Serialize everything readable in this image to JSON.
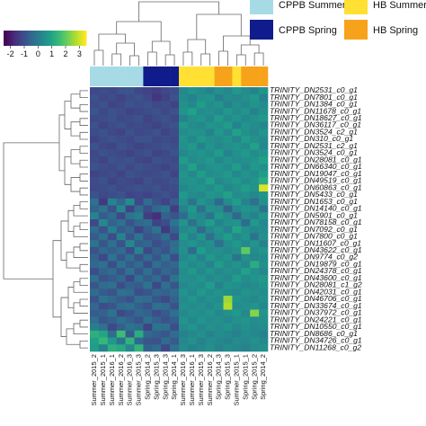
{
  "chart_data": {
    "type": "heatmap",
    "columns": [
      "Summer_2015_2",
      "Summer_2015_1",
      "Summer_2016_1",
      "Summer_2016_2",
      "Summer_2016_3",
      "Summer_2015_3",
      "Spring_2014_2",
      "Spring_2015_3",
      "Spring_2014_3",
      "Spring_2014_1",
      "Summer_2016_3",
      "Summer_2016_1",
      "Summer_2015_3",
      "Summer_2016_2",
      "Spring_2014_3",
      "Spring_2015_3",
      "Summer_2015_1",
      "Spring_2015_1",
      "Spring_2015_2",
      "Spring_2014_2"
    ],
    "column_groups": [
      "CPPB Summer",
      "CPPB Summer",
      "CPPB Summer",
      "CPPB Summer",
      "CPPB Summer",
      "CPPB Summer",
      "CPPB Spring",
      "CPPB Spring",
      "CPPB Spring",
      "CPPB Spring",
      "HB Summer",
      "HB Summer",
      "HB Summer",
      "HB Summer",
      "HB Spring",
      "HB Spring",
      "HB Summer",
      "HB Spring",
      "HB Spring",
      "HB Spring"
    ],
    "rows": [
      "TRINITY_DN2531_c0_g1",
      "TRINITY_DN7801_c0_g1",
      "TRINITY_DN1384_c0_g1",
      "TRINITY_DN11678_c0_g1",
      "TRINITY_DN18627_c0_g1",
      "TRINITY_DN36117_c0_g1",
      "TRINITY_DN3524_c2_g1",
      "TRINITY_DN310_c0_g1",
      "TRINITY_DN2531_c2_g1",
      "TRINITY_DN3524_c0_g1",
      "TRINITY_DN28081_c0_g1",
      "TRINITY_DN66340_c0_g1",
      "TRINITY_DN19047_c0_g1",
      "TRINITY_DN49519_c0_g1",
      "TRINITY_DN60863_c0_g1",
      "TRINITY_DN5433_c0_g1",
      "TRINITY_DN1653_c0_g1",
      "TRINITY_DN14140_c0_g1",
      "TRINITY_DN5901_c0_g1",
      "TRINITY_DN78158_c0_g1",
      "TRINITY_DN7092_c0_g1",
      "TRINITY_DN7800_c0_g1",
      "TRINITY_DN11607_c0_g1",
      "TRINITY_DN43622_c0_g1",
      "TRINITY_DN9774_c0_g2",
      "TRINITY_DN19879_c0_g1",
      "TRINITY_DN24378_c0_g1",
      "TRINITY_DN43600_c0_g1",
      "TRINITY_DN28081_c1_g2",
      "TRINITY_DN42031_c0_g1",
      "TRINITY_DN46706_c0_g1",
      "TRINITY_DN33674_c0_g1",
      "TRINITY_DN37972_c0_g1",
      "TRINITY_DN24221_c0_g1",
      "TRINITY_DN10550_c0_g1",
      "TRINITY_DN8686_c0_g1",
      "TRINITY_DN34726_c0_g1",
      "TRINITY_DN11268_c0_g2"
    ],
    "values": [
      [
        -1.2,
        -1.1,
        -1.2,
        -1.0,
        -0.9,
        -1.2,
        -1.3,
        -1.4,
        -1.2,
        -1.1,
        0.3,
        0.6,
        0.4,
        0.2,
        0.5,
        0.3,
        0.7,
        0.4,
        0.2,
        0.6
      ],
      [
        -1.0,
        -1.2,
        -1.1,
        -1.3,
        -1.1,
        -1.0,
        -1.2,
        -1.6,
        -1.3,
        -1.0,
        0.4,
        0.2,
        0.5,
        0.6,
        0.1,
        0.4,
        0.3,
        0.5,
        0.7,
        0.2
      ],
      [
        -1.1,
        -1.0,
        -1.3,
        -1.2,
        -1.0,
        -1.1,
        -1.0,
        -1.2,
        -1.1,
        -1.3,
        0.5,
        0.3,
        0.8,
        0.4,
        0.6,
        0.2,
        0.5,
        0.3,
        0.6,
        0.4
      ],
      [
        -0.9,
        -1.2,
        -1.0,
        -1.1,
        -1.3,
        -1.2,
        -1.1,
        -1.0,
        -1.2,
        -1.0,
        0.6,
        0.9,
        0.4,
        0.5,
        0.3,
        0.7,
        0.4,
        0.6,
        0.2,
        0.5
      ],
      [
        -1.2,
        -1.1,
        -1.0,
        -1.2,
        -1.1,
        -1.0,
        -1.3,
        -1.1,
        -1.0,
        -1.2,
        0.2,
        0.5,
        0.6,
        0.3,
        0.8,
        0.4,
        0.6,
        0.3,
        0.5,
        0.7
      ],
      [
        -1.0,
        -1.3,
        -1.1,
        -1.0,
        -1.2,
        -1.1,
        -1.2,
        -1.3,
        -1.1,
        -1.0,
        0.7,
        0.4,
        0.3,
        0.6,
        0.5,
        0.8,
        0.2,
        0.6,
        0.4,
        0.3
      ],
      [
        -1.1,
        -1.0,
        -1.2,
        -1.3,
        -1.0,
        -1.2,
        -1.1,
        -1.0,
        -1.3,
        -1.1,
        0.4,
        0.6,
        0.5,
        0.2,
        0.7,
        0.3,
        0.9,
        0.5,
        0.3,
        0.6
      ],
      [
        -1.3,
        -1.1,
        -1.0,
        -1.1,
        -1.2,
        -1.0,
        -1.0,
        -1.2,
        -1.1,
        -1.2,
        0.6,
        0.3,
        0.7,
        0.5,
        0.4,
        0.6,
        0.3,
        0.8,
        0.5,
        0.4
      ],
      [
        -1.0,
        -1.2,
        -1.3,
        -1.0,
        -1.1,
        -1.3,
        -1.2,
        -1.1,
        -1.0,
        -1.1,
        0.5,
        0.7,
        0.2,
        0.6,
        0.3,
        0.5,
        0.6,
        0.4,
        0.9,
        0.3
      ],
      [
        -1.2,
        -1.0,
        -1.1,
        -1.2,
        -1.3,
        -1.1,
        -1.0,
        -1.3,
        -1.2,
        -1.0,
        0.3,
        0.5,
        0.6,
        0.4,
        0.8,
        0.2,
        0.5,
        0.7,
        0.4,
        0.6
      ],
      [
        -1.1,
        -1.3,
        -1.0,
        -1.1,
        -1.0,
        -1.2,
        -1.3,
        -1.0,
        -1.1,
        -1.2,
        0.8,
        0.4,
        0.5,
        0.7,
        0.3,
        0.6,
        0.4,
        0.5,
        0.6,
        0.9
      ],
      [
        -1.0,
        -1.1,
        -1.2,
        -1.0,
        -1.2,
        -1.0,
        -1.1,
        -1.2,
        -1.3,
        -1.1,
        0.4,
        0.9,
        0.3,
        0.5,
        0.6,
        0.4,
        0.8,
        0.3,
        0.7,
        0.5
      ],
      [
        -1.3,
        -1.2,
        -1.1,
        -1.3,
        -1.0,
        -1.1,
        -1.2,
        -1.1,
        -1.0,
        -1.3,
        0.6,
        0.3,
        0.8,
        0.4,
        0.5,
        0.7,
        0.3,
        0.6,
        0.4,
        0.8
      ],
      [
        -1.1,
        -1.0,
        -1.3,
        -1.1,
        -1.2,
        -1.3,
        -1.0,
        -1.2,
        -1.1,
        -1.0,
        0.5,
        0.6,
        0.4,
        0.9,
        0.3,
        0.5,
        0.7,
        0.4,
        0.6,
        1.2
      ],
      [
        -1.2,
        -1.1,
        -1.0,
        -1.2,
        -1.1,
        -1.0,
        -1.1,
        -1.0,
        -1.2,
        -1.1,
        0.3,
        0.5,
        0.6,
        0.4,
        0.7,
        0.3,
        0.5,
        0.8,
        0.6,
        3.2
      ],
      [
        -1.0,
        -1.2,
        -1.1,
        -1.0,
        -1.3,
        -1.2,
        -1.3,
        -1.1,
        -1.0,
        -1.2,
        0.7,
        0.4,
        0.3,
        0.6,
        0.5,
        0.9,
        0.4,
        0.5,
        0.3,
        0.6
      ],
      [
        -0.3,
        -1.5,
        0.2,
        -0.5,
        0.4,
        -1.2,
        -0.4,
        -1.0,
        -1.3,
        -0.8,
        0.5,
        -0.2,
        0.6,
        0.3,
        -0.5,
        0.4,
        0.8,
        0.2,
        -0.3,
        0.5
      ],
      [
        -0.6,
        -0.2,
        -1.0,
        0.3,
        -1.3,
        -0.4,
        -1.1,
        -0.5,
        -0.2,
        -1.4,
        0.2,
        0.7,
        -0.3,
        0.5,
        0.4,
        -0.6,
        0.3,
        0.6,
        0.5,
        -0.2
      ],
      [
        0.2,
        -0.8,
        -0.4,
        -1.2,
        -0.2,
        0.1,
        -1.4,
        -1.7,
        -0.6,
        -0.9,
        -0.4,
        0.5,
        0.3,
        -0.2,
        0.7,
        0.4,
        -0.5,
        0.4,
        0.2,
        0.6
      ],
      [
        -1.2,
        0.3,
        -0.6,
        -0.3,
        -1.0,
        -0.5,
        -0.3,
        -1.3,
        -1.1,
        -0.2,
        0.6,
        -0.3,
        0.4,
        0.8,
        0.2,
        0.5,
        0.6,
        -0.4,
        0.7,
        0.3
      ],
      [
        -0.4,
        -1.0,
        0.1,
        -0.8,
        -0.5,
        -1.3,
        -0.7,
        -0.2,
        -1.5,
        -0.6,
        0.3,
        0.5,
        -0.4,
        0.3,
        0.6,
        0.2,
        1.0,
        0.5,
        0.3,
        0.4
      ],
      [
        -0.8,
        -0.3,
        -1.1,
        0.2,
        -0.9,
        -0.2,
        -1.0,
        -0.8,
        -0.4,
        -1.2,
        0.7,
        0.2,
        0.6,
        -0.3,
        0.4,
        0.8,
        0.3,
        0.6,
        -0.2,
        0.5
      ],
      [
        -0.2,
        -0.9,
        -0.3,
        -1.0,
        0.3,
        -0.7,
        -0.5,
        -1.1,
        -0.8,
        -0.4,
        0.4,
        0.6,
        0.3,
        0.5,
        -0.3,
        0.4,
        0.7,
        0.3,
        0.6,
        0.2
      ],
      [
        -1.0,
        -0.5,
        -0.7,
        -0.4,
        -1.1,
        0.2,
        -1.2,
        -0.6,
        -1.0,
        -0.3,
        0.5,
        -0.4,
        0.8,
        0.4,
        0.5,
        0.3,
        0.5,
        2.0,
        0.4,
        0.6
      ],
      [
        -0.6,
        -1.2,
        -0.2,
        -0.9,
        -0.3,
        -1.0,
        -0.4,
        -0.9,
        -0.2,
        -1.1,
        0.3,
        0.6,
        0.2,
        0.7,
        0.4,
        0.6,
        -0.2,
        0.5,
        0.3,
        0.4
      ],
      [
        -0.5,
        -0.3,
        -1.1,
        -0.2,
        -0.8,
        -0.4,
        -1.1,
        -0.3,
        -0.7,
        -0.5,
        0.6,
        0.3,
        0.5,
        0.2,
        0.8,
        0.4,
        0.6,
        0.3,
        1.2,
        0.5
      ],
      [
        -1.1,
        -0.6,
        -0.4,
        -1.0,
        -0.2,
        -0.9,
        -0.3,
        -1.0,
        -0.5,
        -0.8,
        0.4,
        0.7,
        0.3,
        0.6,
        0.3,
        0.5,
        0.4,
        0.9,
        0.5,
        0.3
      ],
      [
        -0.3,
        -1.0,
        -0.8,
        -0.5,
        -1.2,
        -0.3,
        -0.8,
        -0.4,
        -1.1,
        -0.2,
        0.5,
        0.4,
        0.6,
        0.3,
        0.5,
        0.3,
        0.8,
        0.4,
        0.6,
        0.7
      ],
      [
        -0.9,
        -0.4,
        -0.3,
        -1.1,
        -0.6,
        -0.8,
        -0.2,
        -1.2,
        -0.3,
        -0.9,
        0.3,
        0.5,
        0.4,
        0.8,
        0.2,
        0.6,
        0.5,
        0.3,
        0.4,
        0.6
      ],
      [
        -0.4,
        -0.8,
        -1.0,
        -0.3,
        -0.4,
        -1.1,
        -0.9,
        -0.5,
        -0.6,
        -0.4,
        0.6,
        0.3,
        0.7,
        0.4,
        0.6,
        0.4,
        0.3,
        0.6,
        0.5,
        0.4
      ],
      [
        -1.0,
        -0.2,
        -0.5,
        -0.8,
        -1.0,
        -0.3,
        -0.4,
        -0.9,
        -1.2,
        -0.6,
        0.4,
        0.6,
        0.3,
        0.5,
        0.4,
        2.6,
        0.6,
        0.4,
        0.3,
        0.5
      ],
      [
        -0.5,
        -1.1,
        -0.9,
        -0.4,
        -0.3,
        -0.7,
        -1.0,
        -0.3,
        -0.4,
        -1.0,
        0.5,
        0.4,
        0.5,
        0.3,
        0.6,
        2.8,
        0.4,
        0.5,
        0.6,
        0.3
      ],
      [
        -0.8,
        -0.6,
        -0.2,
        -1.2,
        -0.9,
        -0.5,
        -0.6,
        -1.1,
        -0.8,
        -0.3,
        0.3,
        0.5,
        0.4,
        0.6,
        0.3,
        0.5,
        0.7,
        0.3,
        2.4,
        0.6
      ],
      [
        -0.3,
        -0.9,
        -0.7,
        -0.3,
        -0.6,
        -1.0,
        -0.3,
        -0.6,
        -1.0,
        -0.7,
        0.6,
        0.3,
        0.6,
        0.4,
        0.5,
        0.3,
        0.5,
        0.6,
        0.4,
        0.5
      ],
      [
        0.1,
        -0.3,
        -1.2,
        -0.7,
        -0.2,
        -0.4,
        -1.3,
        -0.2,
        -0.3,
        -1.1,
        0.4,
        0.6,
        0.3,
        0.5,
        0.4,
        0.6,
        0.3,
        0.5,
        0.3,
        0.4
      ],
      [
        1.3,
        1.0,
        -0.4,
        1.6,
        -0.8,
        1.2,
        -0.5,
        -0.7,
        -0.9,
        -0.4,
        0.2,
        0.3,
        0.5,
        0.2,
        0.4,
        0.3,
        0.2,
        0.4,
        0.3,
        0.2
      ],
      [
        0.9,
        1.5,
        0.7,
        -0.2,
        1.4,
        -0.5,
        -0.9,
        -1.0,
        -0.4,
        -0.8,
        0.3,
        0.5,
        0.2,
        0.4,
        0.3,
        0.2,
        0.4,
        0.3,
        0.5,
        0.3
      ],
      [
        0.8,
        0.2,
        1.3,
        1.1,
        0.3,
        1.4,
        -0.6,
        -0.4,
        -1.2,
        -0.3,
        0.4,
        0.2,
        0.3,
        0.5,
        0.2,
        0.4,
        0.3,
        0.2,
        0.4,
        0.5
      ]
    ],
    "color_scale": {
      "ticks": [
        "-2",
        "-1",
        "0",
        "1",
        "2",
        "3"
      ],
      "range": [
        -2.5,
        3.5
      ],
      "colormap": "viridis"
    },
    "legend": [
      {
        "name": "CPPB Summer",
        "color": "#a6dbe6"
      },
      {
        "name": "HB Summer",
        "color": "#ffe033"
      },
      {
        "name": "CPPB Spring",
        "color": "#101c8c"
      },
      {
        "name": "HB Spring",
        "color": "#f7a21b"
      }
    ],
    "dendrogram_rows": true,
    "dendrogram_columns": true
  }
}
